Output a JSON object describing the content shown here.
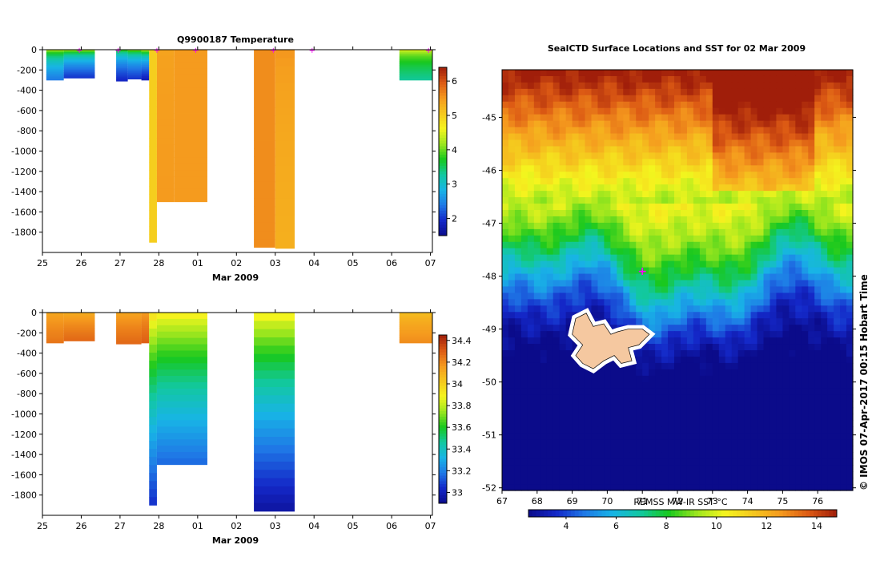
{
  "colors": {
    "temperature_ramp": [
      "#0b0b8a",
      "#1428c8",
      "#1f78e6",
      "#18b4e6",
      "#12c8a0",
      "#18c81e",
      "#9be61e",
      "#f5f51e",
      "#f5c81e",
      "#f59a1e",
      "#dc5a14",
      "#a01e0a"
    ],
    "salinity_ramp": [
      "#0b0b8a",
      "#1428c8",
      "#1f78e6",
      "#18b4e6",
      "#12c8a0",
      "#18c81e",
      "#9be61e",
      "#f5f51e",
      "#f5c81e",
      "#f59a1e",
      "#dc5a14",
      "#a01e0a"
    ],
    "sst_ramp": [
      "#0b0b8a",
      "#1428c8",
      "#1f78e6",
      "#18b4e6",
      "#12c8a0",
      "#18c81e",
      "#9be61e",
      "#f5f51e",
      "#f5c81e",
      "#f59a1e",
      "#dc5a14",
      "#a01e0a"
    ],
    "land": "#f5c8a0",
    "marker": "#ff00ff"
  },
  "chart_data": [
    {
      "type": "heatmap",
      "title": "Q9900187  Temperature",
      "xlabel": "Mar 2009",
      "xticks": [
        "25",
        "26",
        "27",
        "28",
        "01",
        "02",
        "03",
        "04",
        "05",
        "06",
        "07"
      ],
      "xlim": [
        0,
        10.05
      ],
      "ylim": [
        -2000,
        0
      ],
      "yticks": [
        0,
        -200,
        -400,
        -600,
        -800,
        -1000,
        -1200,
        -1400,
        -1600,
        -1800
      ],
      "colorbar": {
        "range": [
          1.5,
          6.4
        ],
        "ticks": [
          2,
          3,
          4,
          5,
          6
        ]
      },
      "profiles": [
        {
          "t0": 0.1,
          "t1": 0.55,
          "depth": 300,
          "surface": 4.9,
          "deep": 2.4
        },
        {
          "t0": 0.55,
          "t1": 1.35,
          "depth": 280,
          "surface": 5.0,
          "deep": 2.0
        },
        {
          "t0": 1.9,
          "t1": 2.2,
          "depth": 310,
          "surface": 4.5,
          "deep": 1.9
        },
        {
          "t0": 2.2,
          "t1": 2.55,
          "depth": 290,
          "surface": 4.8,
          "deep": 2.0
        },
        {
          "t0": 2.55,
          "t1": 2.75,
          "depth": 300,
          "surface": 5.2,
          "deep": 1.8
        },
        {
          "t0": 2.75,
          "t1": 2.95,
          "depth": 1900,
          "surface": 5.0,
          "deep": 5.0
        },
        {
          "t0": 2.95,
          "t1": 3.4,
          "depth": 1500,
          "surface": 5.4,
          "deep": 5.5
        },
        {
          "t0": 3.4,
          "t1": 4.25,
          "depth": 1500,
          "surface": 5.5,
          "deep": 5.5
        },
        {
          "t0": 5.45,
          "t1": 6.0,
          "depth": 1950,
          "surface": 5.6,
          "deep": 5.6
        },
        {
          "t0": 6.0,
          "t1": 6.5,
          "depth": 1960,
          "surface": 5.6,
          "deep": 5.3
        },
        {
          "t0": 9.2,
          "t1": 10.05,
          "depth": 300,
          "surface": 4.9,
          "deep": 3.3
        }
      ],
      "markers": [
        0.95,
        1.95,
        2.95,
        3.95,
        5.95,
        6.95,
        9.95
      ]
    },
    {
      "type": "heatmap",
      "title": "",
      "xlabel": "Mar 2009",
      "xticks": [
        "25",
        "26",
        "27",
        "28",
        "01",
        "02",
        "03",
        "04",
        "05",
        "06",
        "07"
      ],
      "xlim": [
        0,
        10.05
      ],
      "ylim": [
        -2000,
        0
      ],
      "yticks": [
        0,
        -200,
        -400,
        -600,
        -800,
        -1000,
        -1200,
        -1400,
        -1600,
        -1800
      ],
      "colorbar": {
        "range": [
          32.9,
          34.45
        ],
        "ticks": [
          "33",
          "33.2",
          "33.4",
          "33.6",
          "33.8",
          "34",
          "34.2",
          "34.4"
        ]
      },
      "profiles": [
        {
          "t0": 0.1,
          "t1": 0.55,
          "depth": 300,
          "surface": 34.12,
          "deep": 34.25
        },
        {
          "t0": 0.55,
          "t1": 1.35,
          "depth": 280,
          "surface": 34.1,
          "deep": 34.28
        },
        {
          "t0": 1.9,
          "t1": 2.55,
          "depth": 310,
          "surface": 34.12,
          "deep": 34.28
        },
        {
          "t0": 2.55,
          "t1": 2.75,
          "depth": 300,
          "surface": 34.15,
          "deep": 34.3
        },
        {
          "t0": 2.75,
          "t1": 2.95,
          "depth": 1900,
          "surface": 34.0,
          "deep": 33.05
        },
        {
          "t0": 2.95,
          "t1": 4.25,
          "depth": 1500,
          "surface": 33.95,
          "deep": 33.15
        },
        {
          "t0": 5.45,
          "t1": 6.5,
          "depth": 1960,
          "surface": 33.95,
          "deep": 32.95
        },
        {
          "t0": 9.2,
          "t1": 10.05,
          "depth": 300,
          "surface": 34.05,
          "deep": 34.2
        }
      ]
    },
    {
      "type": "heatmap",
      "title": "SealCTD Surface Locations and SST for 02 Mar 2009",
      "xlabel": "REMSS MW-IR SST °C",
      "xlim": [
        67,
        77
      ],
      "ylim": [
        -52.05,
        -44.1
      ],
      "xticks": [
        67,
        68,
        69,
        70,
        71,
        72,
        73,
        74,
        75,
        76
      ],
      "yticks": [
        -45,
        -46,
        -47,
        -48,
        -49,
        -50,
        -51,
        -52
      ],
      "colorbar": {
        "range": [
          2.5,
          14.8
        ],
        "ticks": [
          4,
          6,
          8,
          10,
          12,
          14
        ]
      },
      "seal_location": {
        "lon": 71.0,
        "lat": -47.9
      },
      "island": "Kerguelen"
    }
  ],
  "credit": "© IMOS 07-Apr-2017 00:15 Hobart Time"
}
